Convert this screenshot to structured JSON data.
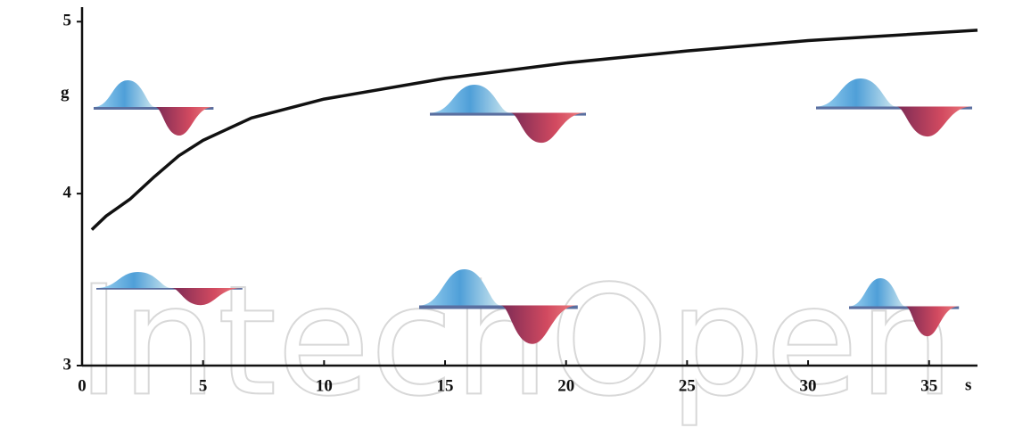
{
  "chart_data": {
    "type": "line",
    "x_label": "s",
    "y_label": "g",
    "watermark": "IntechOpen",
    "series": [
      {
        "color": "#111111",
        "x": [
          0.4,
          1,
          2,
          3,
          4,
          5,
          7,
          10,
          15,
          20,
          25,
          30,
          37
        ],
        "values": [
          3.79,
          3.87,
          3.97,
          4.1,
          4.22,
          4.31,
          4.44,
          4.55,
          4.67,
          4.76,
          4.83,
          4.89,
          4.95
        ]
      }
    ],
    "xlim": [
      0,
      37
    ],
    "ylim": [
      3,
      5.1
    ],
    "xticks": [
      0,
      5,
      10,
      15,
      20,
      25,
      30,
      35
    ],
    "yticks": [
      3,
      4,
      5
    ],
    "grid": false
  }
}
